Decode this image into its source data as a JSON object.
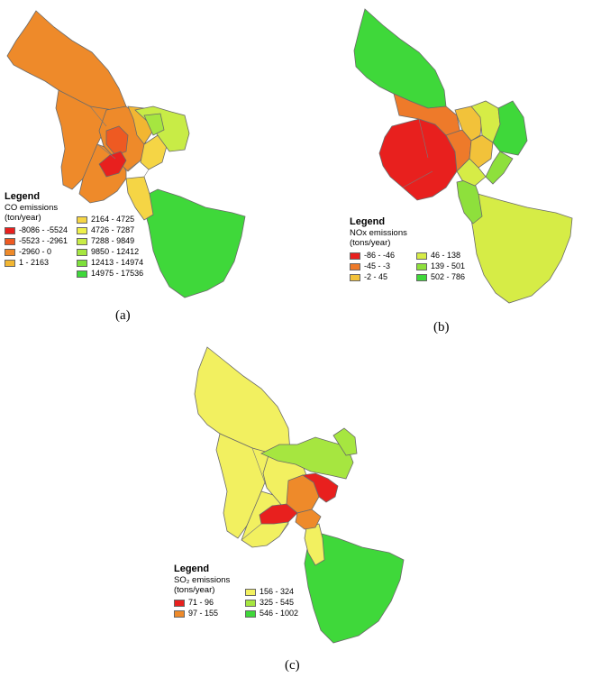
{
  "maps": [
    {
      "id": "a",
      "caption": "(a)",
      "legend_title": "Legend",
      "legend_subtitle_line1": "CO emissions",
      "legend_subtitle_line2": "(ton/year)",
      "classes": [
        {
          "label": "-8086 - -5524",
          "color": "#e8201e"
        },
        {
          "label": "-5523 - -2961",
          "color": "#ee5a22"
        },
        {
          "label": "-2960 - 0",
          "color": "#ee8a2a"
        },
        {
          "label": "1 - 2163",
          "color": "#f2b632"
        },
        {
          "label": "2164 - 4725",
          "color": "#f5d545"
        },
        {
          "label": "4726 - 7287",
          "color": "#eef04a"
        },
        {
          "label": "7288 - 9849",
          "color": "#c8ec46"
        },
        {
          "label": "9850 - 12412",
          "color": "#a6e640"
        },
        {
          "label": "12413 - 14974",
          "color": "#7ee03c"
        },
        {
          "label": "14975 - 17536",
          "color": "#3fd83a"
        }
      ]
    },
    {
      "id": "b",
      "caption": "(b)",
      "legend_title": "Legend",
      "legend_subtitle_line1": "NOx emissions",
      "legend_subtitle_line2": "(tons/year)",
      "classes": [
        {
          "label": "-86 - -46",
          "color": "#e8201e"
        },
        {
          "label": "-45 - -3",
          "color": "#ee7a2a"
        },
        {
          "label": "-2 - 45",
          "color": "#f2c23a"
        },
        {
          "label": "46 - 138",
          "color": "#d6ec46"
        },
        {
          "label": "139 - 501",
          "color": "#8ee03c"
        },
        {
          "label": "502 - 786",
          "color": "#3fd83a"
        }
      ]
    },
    {
      "id": "c",
      "caption": "(c)",
      "legend_title": "Legend",
      "legend_subtitle_line1": "SO₂ emissions",
      "legend_subtitle_line2": "(tons/year)",
      "classes": [
        {
          "label": "71 - 96",
          "color": "#e8201e"
        },
        {
          "label": "97 - 155",
          "color": "#ee8a2a"
        },
        {
          "label": "156 - 324",
          "color": "#f2f060"
        },
        {
          "label": "325 - 545",
          "color": "#a6e640"
        },
        {
          "label": "546 - 1002",
          "color": "#3fd83a"
        }
      ]
    }
  ]
}
